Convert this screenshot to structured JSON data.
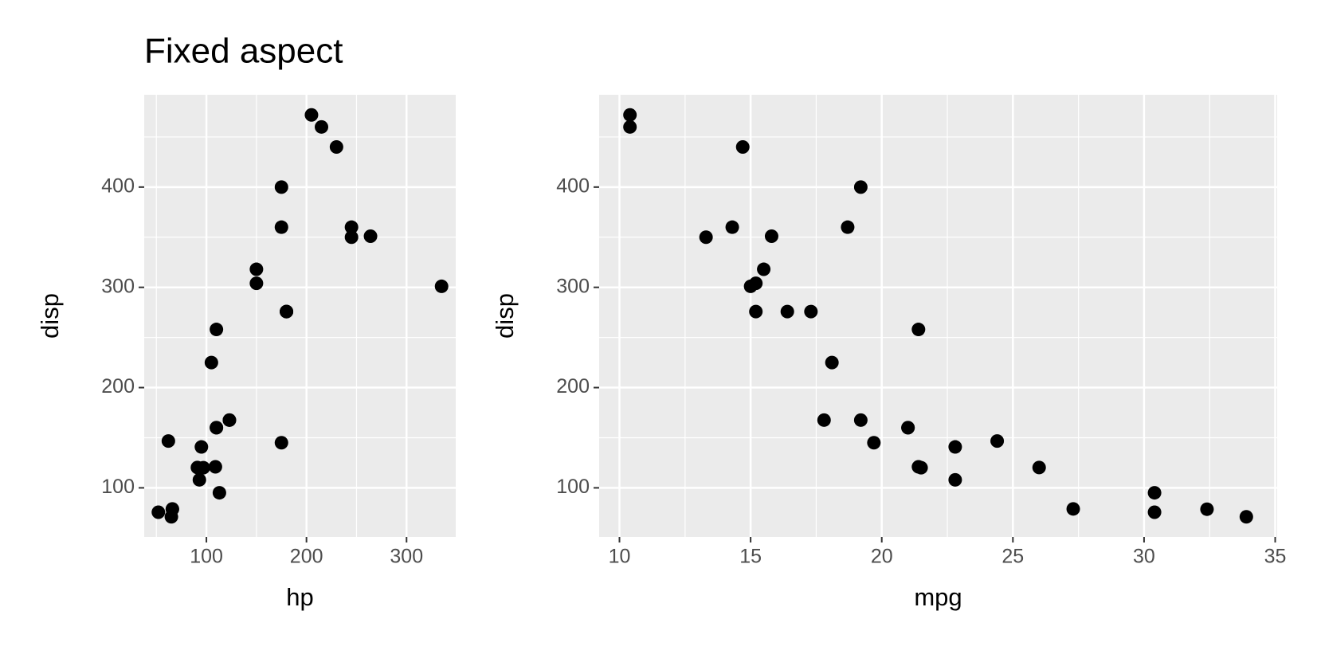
{
  "chart_data": [
    {
      "type": "scatter",
      "title": "Fixed aspect",
      "x_label": "hp",
      "y_label": "disp",
      "x": [
        110,
        110,
        93,
        110,
        175,
        105,
        245,
        62,
        95,
        123,
        123,
        180,
        180,
        180,
        205,
        215,
        230,
        66,
        52,
        65,
        97,
        150,
        150,
        245,
        175,
        66,
        91,
        113,
        264,
        175,
        335,
        109
      ],
      "values": [
        160,
        160,
        108,
        258,
        360,
        225,
        360,
        146.7,
        140.8,
        167.6,
        167.6,
        275.8,
        275.8,
        275.8,
        472,
        460,
        440,
        78.7,
        75.7,
        71.1,
        120.1,
        318,
        304,
        350,
        400,
        79,
        120.3,
        95.1,
        351,
        145,
        301,
        121
      ],
      "color": "#000000",
      "xlim": [
        37.85,
        349.15
      ],
      "xticks": [
        100,
        200,
        300
      ],
      "ylim": [
        51.055,
        492.045
      ],
      "yticks": [
        100,
        200,
        300,
        400
      ],
      "grid": true
    },
    {
      "type": "scatter",
      "x_label": "mpg",
      "y_label": "disp",
      "x": [
        21,
        21,
        22.8,
        21.4,
        18.7,
        18.1,
        14.3,
        24.4,
        22.8,
        19.2,
        17.8,
        16.4,
        17.3,
        15.2,
        10.4,
        10.4,
        14.7,
        32.4,
        30.4,
        33.9,
        21.5,
        15.5,
        15.2,
        13.3,
        19.2,
        27.3,
        26,
        30.4,
        15.8,
        19.7,
        15,
        21.4
      ],
      "values": [
        160,
        160,
        108,
        258,
        360,
        225,
        360,
        146.7,
        140.8,
        167.6,
        167.6,
        275.8,
        275.8,
        275.8,
        472,
        460,
        440,
        78.7,
        75.7,
        71.1,
        120.1,
        318,
        304,
        350,
        400,
        79,
        120.3,
        95.1,
        351,
        145,
        301,
        121
      ],
      "color": "#000000",
      "xlim": [
        9.225,
        35.075
      ],
      "xticks": [
        10,
        15,
        20,
        25,
        30,
        35
      ],
      "ylim": [
        51.055,
        492.045
      ],
      "yticks": [
        100,
        200,
        300,
        400
      ],
      "grid": true
    }
  ]
}
